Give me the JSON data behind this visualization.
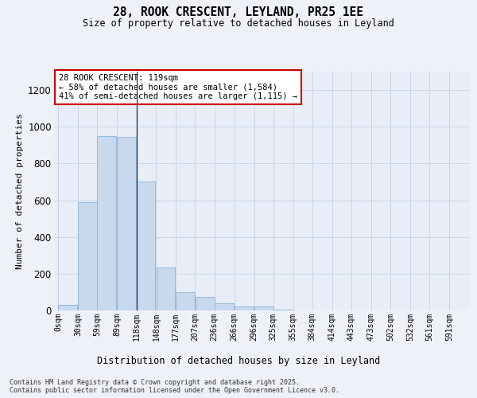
{
  "title_line1": "28, ROOK CRESCENT, LEYLAND, PR25 1EE",
  "title_line2": "Size of property relative to detached houses in Leyland",
  "xlabel": "Distribution of detached houses by size in Leyland",
  "ylabel": "Number of detached properties",
  "bar_color": "#c8d9ee",
  "bar_edge_color": "#8ab4d8",
  "bins_start": [
    0,
    30,
    59,
    89,
    118,
    148,
    177,
    207,
    236,
    266,
    296,
    325,
    355,
    384,
    414,
    443,
    473,
    502,
    532,
    561
  ],
  "values": [
    30,
    590,
    950,
    945,
    700,
    235,
    100,
    75,
    40,
    20,
    20,
    5,
    1,
    0,
    0,
    1,
    0,
    0,
    0,
    0
  ],
  "xticklabels": [
    "0sqm",
    "30sqm",
    "59sqm",
    "89sqm",
    "118sqm",
    "148sqm",
    "177sqm",
    "207sqm",
    "236sqm",
    "266sqm",
    "296sqm",
    "325sqm",
    "355sqm",
    "384sqm",
    "414sqm",
    "443sqm",
    "473sqm",
    "502sqm",
    "532sqm",
    "561sqm",
    "591sqm"
  ],
  "xtick_positions": [
    0,
    30,
    59,
    89,
    118,
    148,
    177,
    207,
    236,
    266,
    296,
    325,
    355,
    384,
    414,
    443,
    473,
    502,
    532,
    561,
    591
  ],
  "ylim": [
    0,
    1300
  ],
  "xlim": [
    -5,
    622
  ],
  "vline_x": 119,
  "annotation_text": "28 ROOK CRESCENT: 119sqm\n← 58% of detached houses are smaller (1,584)\n41% of semi-detached houses are larger (1,115) →",
  "annotation_box_color": "#ffffff",
  "annotation_box_edge": "#cc0000",
  "footer_line1": "Contains HM Land Registry data © Crown copyright and database right 2025.",
  "footer_line2": "Contains public sector information licensed under the Open Government Licence v3.0.",
  "grid_color": "#cdd5e5",
  "background_color": "#e8edf7",
  "fig_background": "#eef2f8"
}
